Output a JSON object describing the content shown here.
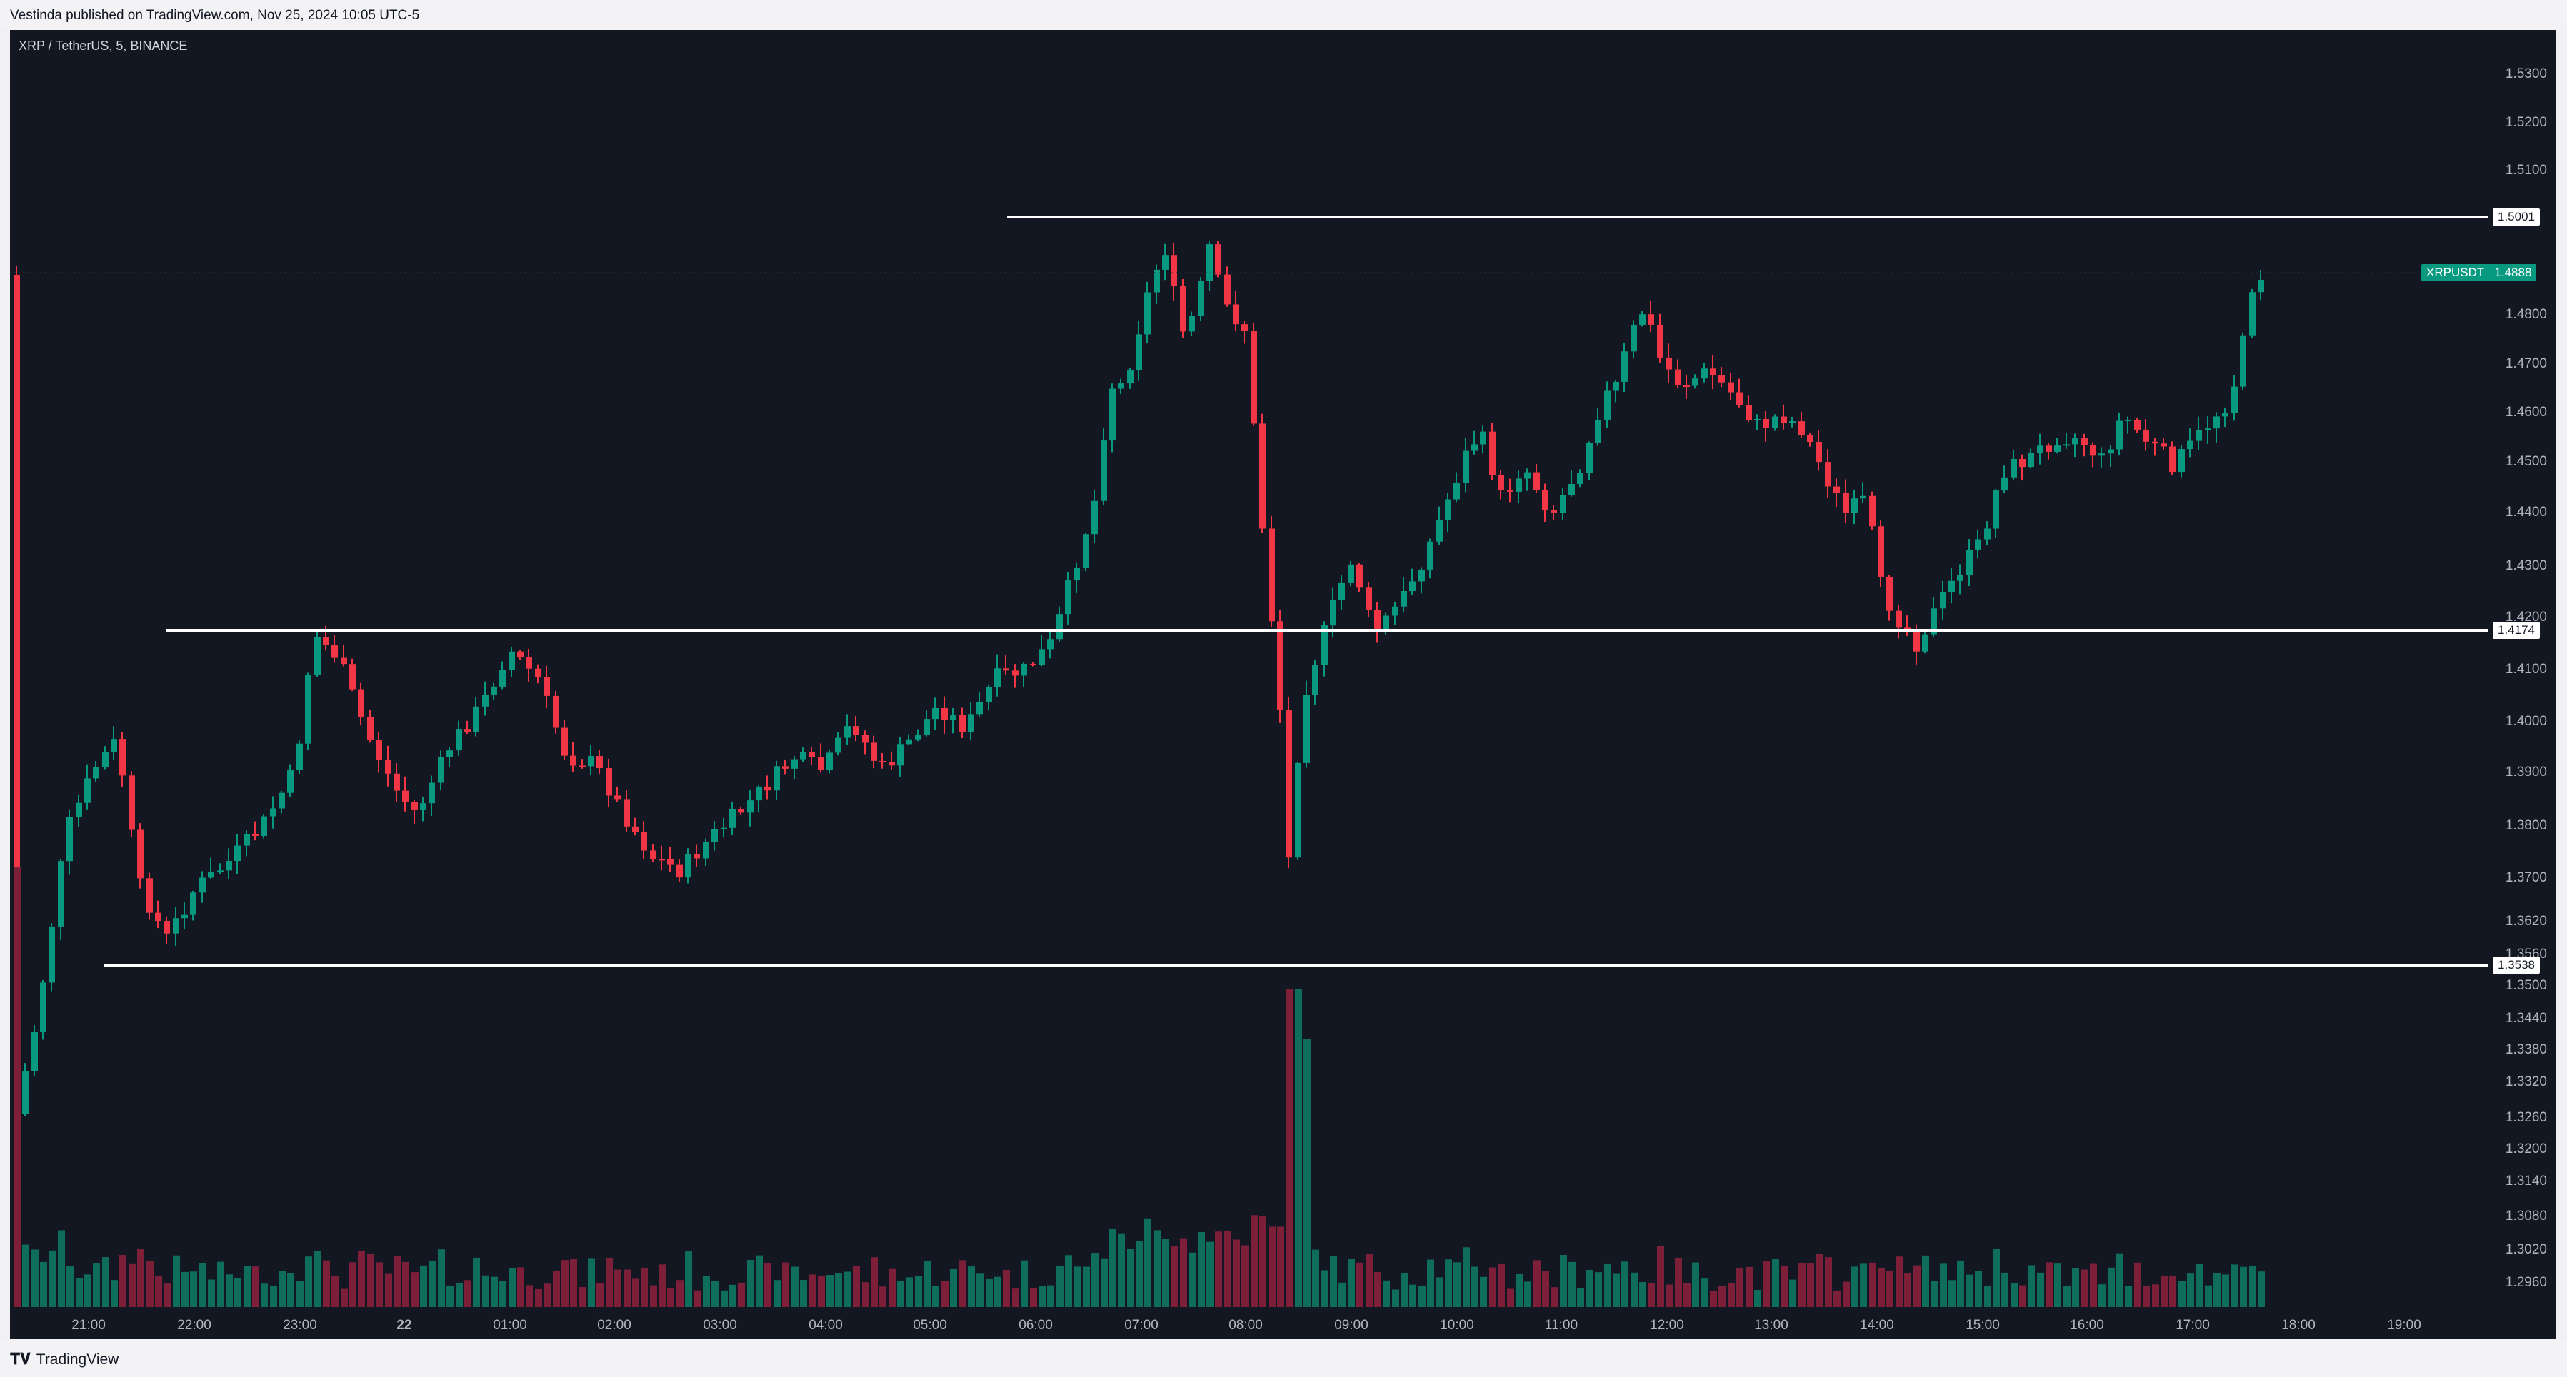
{
  "header": {
    "published": "Vestinda published on TradingView.com, Nov 25, 2024 10:05 UTC-5"
  },
  "chart": {
    "symbol_title": "XRP / TetherUS, 5, BINANCE",
    "ticker_label": "XRPUSDT",
    "last_price_label": "1.4888",
    "price_axis_labels": [
      "1.5300",
      "1.5200",
      "1.5100",
      "1.4800",
      "1.4700",
      "1.4600",
      "1.4500",
      "1.4400",
      "1.4300",
      "1.4200",
      "1.4100",
      "1.4000",
      "1.3900",
      "1.3800",
      "1.3700",
      "1.3620",
      "1.3560",
      "1.3500",
      "1.3440",
      "1.3380",
      "1.3320",
      "1.3260",
      "1.3200",
      "1.3140",
      "1.3080",
      "1.3020",
      "1.2960"
    ],
    "time_axis_labels": [
      "21:00",
      "22:00",
      "23:00",
      "22",
      "01:00",
      "02:00",
      "03:00",
      "04:00",
      "05:00",
      "06:00",
      "07:00",
      "08:00",
      "09:00",
      "10:00",
      "11:00",
      "12:00",
      "13:00",
      "14:00",
      "15:00",
      "16:00",
      "17:00",
      "18:00",
      "19:00"
    ],
    "horizontal_lines": [
      {
        "label": "1.5001"
      },
      {
        "label": "1.4174"
      },
      {
        "label": "1.3538"
      }
    ],
    "colors": {
      "background": "#131722",
      "up": "#089981",
      "down": "#f23645",
      "volume_up": "#0f6d5c",
      "volume_down": "#7e1f3a",
      "axis_text": "#b2b5be",
      "lines": "#ffffff"
    }
  },
  "footer": {
    "brand": "TradingView",
    "logo_icon": "tradingview-logo-icon"
  }
}
